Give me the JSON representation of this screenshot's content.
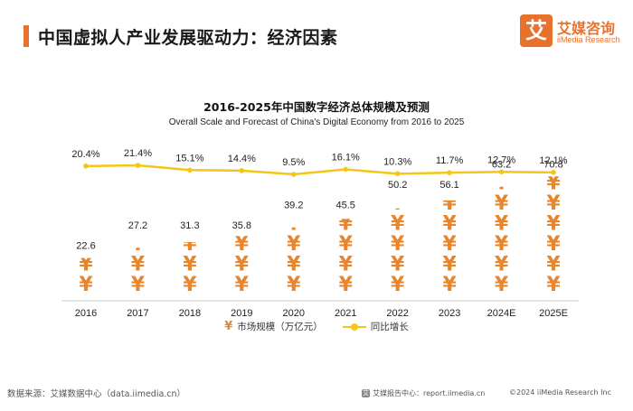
{
  "header": {
    "title": "中国虚拟人产业发展驱动力：经济因素"
  },
  "logo": {
    "mark": "艾",
    "cn": "艾媒咨询",
    "en": "iiMedia Research"
  },
  "legend": {
    "bar_label": "市场规模（万亿元）",
    "line_label": "同比增长"
  },
  "footer": {
    "source": "数据来源：艾媒数据中心（data.iimedia.cn）",
    "center": "艾媒报告中心：report.iimedia.cn",
    "copyright": "©2024 iiMedia Research Inc"
  },
  "colors": {
    "accent": "#e8712d",
    "bar_symbol": "#e8862d",
    "growth_line": "#f5c518"
  },
  "chart_data": {
    "type": "bar",
    "title": "2016-2025年中国数字经济总体规模及预测",
    "subtitle": "Overall Scale and Forecast of China's Digital Economy from 2016 to 2025",
    "categories": [
      "2016",
      "2017",
      "2018",
      "2019",
      "2020",
      "2021",
      "2022",
      "2023",
      "2024E",
      "2025E"
    ],
    "series": [
      {
        "name": "市场规模（万亿元）",
        "type": "pictorial-bar",
        "symbol": "¥",
        "values": [
          22.6,
          27.2,
          31.3,
          35.8,
          39.2,
          45.5,
          50.2,
          56.1,
          63.2,
          70.8
        ],
        "labels": [
          "22.6",
          "27.2",
          "31.3",
          "35.8",
          "39.2",
          "45.5",
          "50.2",
          "56.1",
          "63.2",
          "70.8"
        ]
      },
      {
        "name": "同比增长",
        "type": "line",
        "values": [
          20.4,
          21.4,
          15.1,
          14.4,
          9.5,
          16.1,
          10.3,
          11.7,
          12.7,
          12.1
        ],
        "labels": [
          "20.4%",
          "21.4%",
          "15.1%",
          "14.4%",
          "9.5%",
          "16.1%",
          "10.3%",
          "11.7%",
          "12.7%",
          "12.1%"
        ]
      }
    ],
    "symbol_unit": 12,
    "legend_position": "bottom-center",
    "grid": false
  }
}
